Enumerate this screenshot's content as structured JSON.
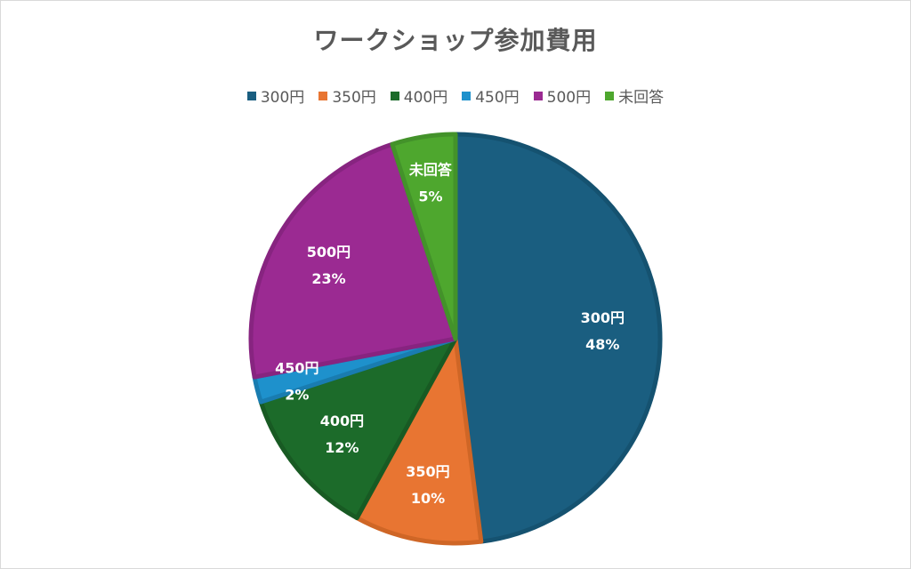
{
  "chart_data": {
    "type": "pie",
    "title": "ワークショップ参加費用",
    "legend_position": "top",
    "categories": [
      "300円",
      "350円",
      "400円",
      "450円",
      "500円",
      "未回答"
    ],
    "values": [
      48,
      10,
      12,
      2,
      23,
      5
    ],
    "value_labels": [
      "48%",
      "10%",
      "12%",
      "2%",
      "23%",
      "5%"
    ],
    "colors": [
      "#1a5e80",
      "#e87532",
      "#1c6b2a",
      "#1e91cc",
      "#9b2a92",
      "#4ea72e"
    ],
    "edge_colors": [
      "#155270",
      "#cf6626",
      "#185a23",
      "#197cb0",
      "#872480",
      "#43922a"
    ]
  }
}
